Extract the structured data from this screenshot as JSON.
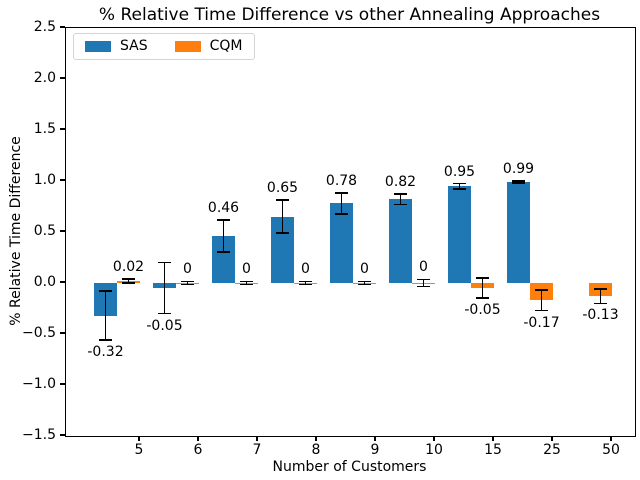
{
  "chart_data": {
    "type": "bar",
    "title": "% Relative Time Difference vs other Annealing Approaches",
    "xlabel": "Number of Customers",
    "ylabel": "% Relative Time Difference",
    "categories": [
      "5",
      "6",
      "7",
      "8",
      "9",
      "10",
      "15",
      "25",
      "50"
    ],
    "series": [
      {
        "name": "SAS",
        "color": "#1f77b4",
        "values": [
          -0.32,
          -0.05,
          0.46,
          0.65,
          0.78,
          0.82,
          0.95,
          0.99,
          null
        ],
        "errors": [
          0.24,
          0.25,
          0.155,
          0.16,
          0.1,
          0.05,
          0.025,
          0.01,
          null
        ],
        "data_labels": [
          "-0.32",
          "-0.05",
          "0.46",
          "0.65",
          "0.78",
          "0.82",
          "0.95",
          "0.99",
          ""
        ]
      },
      {
        "name": "CQM",
        "color": "#ff7f0e",
        "values": [
          0.02,
          0,
          0,
          0,
          0,
          0,
          -0.05,
          -0.17,
          -0.13
        ],
        "errors": [
          0.02,
          0.015,
          0.015,
          0.015,
          0.015,
          0.035,
          0.1,
          0.1,
          0.07
        ],
        "data_labels": [
          "0.02",
          "0",
          "0",
          "0",
          "0",
          "0",
          "-0.05",
          "-0.17",
          "-0.13"
        ]
      }
    ],
    "ylim": [
      -1.5,
      2.5
    ],
    "yticks": [
      2.5,
      2.0,
      1.5,
      1.0,
      0.5,
      0.0,
      -0.5,
      -1.0,
      -1.5
    ],
    "ytick_labels": [
      "2.5",
      "2.0",
      "1.5",
      "1.0",
      "0.5",
      "0.0",
      "−0.5",
      "−1.0",
      "−1.5"
    ],
    "legend": {
      "position": "upper left",
      "entries": [
        "SAS",
        "CQM"
      ]
    },
    "grid": false,
    "error_bars": true,
    "axis_color": "#000000",
    "background": "#ffffff"
  }
}
